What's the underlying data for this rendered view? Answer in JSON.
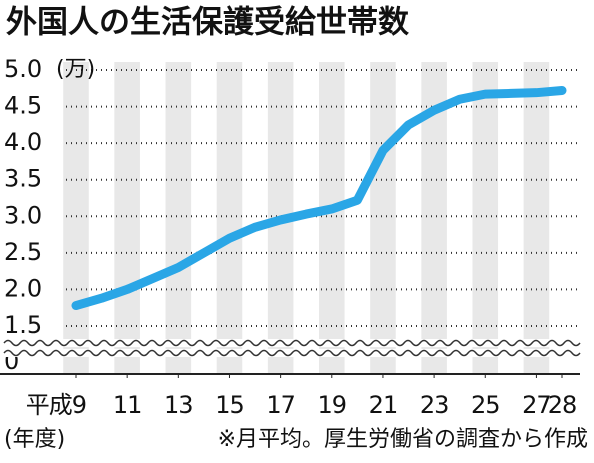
{
  "chart_data": {
    "type": "line",
    "title": "外国人の生活保護受給世帯数",
    "y_unit": "(万)",
    "x_label": "(年度)",
    "note": "※月平均。厚生労働省の調査から作成",
    "x": [
      9,
      10,
      11,
      12,
      13,
      14,
      15,
      16,
      17,
      18,
      19,
      20,
      21,
      22,
      23,
      24,
      25,
      26,
      27,
      28
    ],
    "series": [
      {
        "name": "外国人の生活保護受給世帯数",
        "color": "#2aa6e6",
        "values": [
          1.78,
          1.88,
          2.0,
          2.15,
          2.3,
          2.5,
          2.7,
          2.85,
          2.95,
          3.03,
          3.1,
          3.22,
          3.9,
          4.25,
          4.45,
          4.6,
          4.67,
          4.68,
          4.69,
          4.72
        ]
      }
    ],
    "xlim": [
      9,
      28
    ],
    "xticks": [
      {
        "value": 9,
        "label": "平成9"
      },
      11,
      13,
      15,
      17,
      19,
      21,
      23,
      25,
      27,
      28
    ],
    "ylim": [
      0,
      5
    ],
    "y_break": [
      0,
      1.5
    ],
    "yticks": [
      0,
      1.5,
      {
        "value": 2,
        "label": "2.0"
      },
      2.5,
      {
        "value": 3,
        "label": "3.0"
      },
      3.5,
      {
        "value": 4,
        "label": "4.0"
      },
      4.5,
      {
        "value": 5,
        "label": "5.0"
      }
    ],
    "grid": true
  }
}
